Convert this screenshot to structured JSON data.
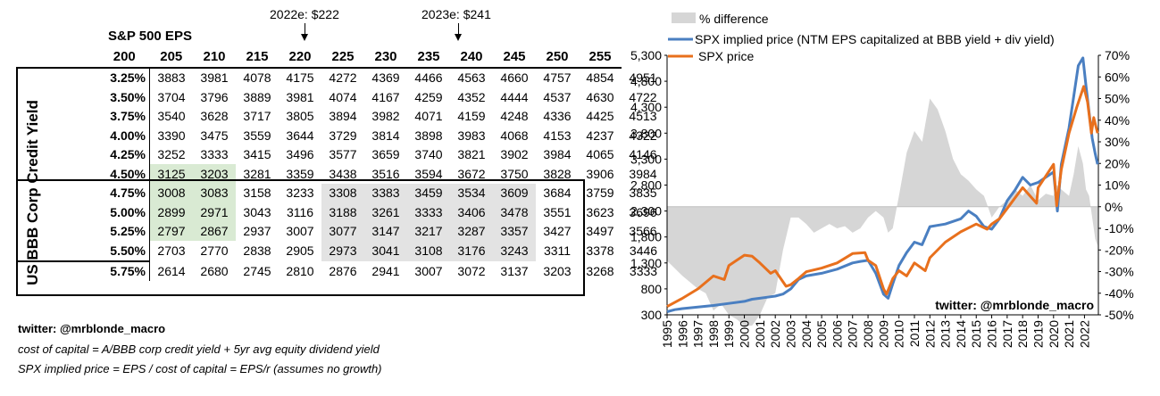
{
  "annotations": {
    "a2022": "2022e: $222",
    "a2023": "2023e: $241"
  },
  "table": {
    "title": "S&P 500 EPS",
    "ylabel": "US BBB Corp Credit Yield",
    "eps_headers": [
      "200",
      "205",
      "210",
      "215",
      "220",
      "225",
      "230",
      "235",
      "240",
      "245",
      "250",
      "255"
    ],
    "rows": [
      {
        "rate": "3.25%",
        "values": [
          "3883",
          "3981",
          "4078",
          "4175",
          "4272",
          "4369",
          "4466",
          "4563",
          "4660",
          "4757",
          "4854",
          "4951"
        ]
      },
      {
        "rate": "3.50%",
        "values": [
          "3704",
          "3796",
          "3889",
          "3981",
          "4074",
          "4167",
          "4259",
          "4352",
          "4444",
          "4537",
          "4630",
          "4722"
        ]
      },
      {
        "rate": "3.75%",
        "values": [
          "3540",
          "3628",
          "3717",
          "3805",
          "3894",
          "3982",
          "4071",
          "4159",
          "4248",
          "4336",
          "4425",
          "4513"
        ]
      },
      {
        "rate": "4.00%",
        "values": [
          "3390",
          "3475",
          "3559",
          "3644",
          "3729",
          "3814",
          "3898",
          "3983",
          "4068",
          "4153",
          "4237",
          "4322"
        ]
      },
      {
        "rate": "4.25%",
        "values": [
          "3252",
          "3333",
          "3415",
          "3496",
          "3577",
          "3659",
          "3740",
          "3821",
          "3902",
          "3984",
          "4065",
          "4146"
        ]
      },
      {
        "rate": "4.50%",
        "values": [
          "3125",
          "3203",
          "3281",
          "3359",
          "3438",
          "3516",
          "3594",
          "3672",
          "3750",
          "3828",
          "3906",
          "3984"
        ]
      },
      {
        "rate": "4.75%",
        "values": [
          "3008",
          "3083",
          "3158",
          "3233",
          "3308",
          "3383",
          "3459",
          "3534",
          "3609",
          "3684",
          "3759",
          "3835"
        ]
      },
      {
        "rate": "5.00%",
        "values": [
          "2899",
          "2971",
          "3043",
          "3116",
          "3188",
          "3261",
          "3333",
          "3406",
          "3478",
          "3551",
          "3623",
          "3696"
        ]
      },
      {
        "rate": "5.25%",
        "values": [
          "2797",
          "2867",
          "2937",
          "3007",
          "3077",
          "3147",
          "3217",
          "3287",
          "3357",
          "3427",
          "3497",
          "3566"
        ]
      },
      {
        "rate": "5.50%",
        "values": [
          "2703",
          "2770",
          "2838",
          "2905",
          "2973",
          "3041",
          "3108",
          "3176",
          "3243",
          "3311",
          "3378",
          "3446"
        ]
      },
      {
        "rate": "5.75%",
        "values": [
          "2614",
          "2680",
          "2745",
          "2810",
          "2876",
          "2941",
          "3007",
          "3072",
          "3137",
          "3203",
          "3268",
          "3333"
        ]
      }
    ]
  },
  "footnotes": {
    "twitter": "twitter: @mrblonde_macro",
    "line1": "cost of capital = A/BBB corp credit yield + 5yr avg equity dividend yield",
    "line2": "SPX implied price = EPS / cost of capital = EPS/r (assumes no growth)"
  },
  "chart_data": {
    "type": "line",
    "legend": [
      "% difference",
      "SPX implied price (NTM EPS capitalized at BBB yield + div yield)",
      "SPX price"
    ],
    "watermark": "twitter: @mrblonde_macro",
    "y_left": {
      "min": 300,
      "max": 5300,
      "ticks": [
        "5,300",
        "4,800",
        "4,300",
        "3,800",
        "3,300",
        "2,800",
        "2,300",
        "1,800",
        "1,300",
        "800",
        "300"
      ],
      "tick_values": [
        5300,
        4800,
        4300,
        3800,
        3300,
        2800,
        2300,
        1800,
        1300,
        800,
        300
      ]
    },
    "y_right": {
      "min": -50,
      "max": 70,
      "ticks": [
        "70%",
        "60%",
        "50%",
        "40%",
        "30%",
        "20%",
        "10%",
        "0%",
        "-10%",
        "-20%",
        "-30%",
        "-40%",
        "-50%"
      ],
      "tick_values": [
        70,
        60,
        50,
        40,
        30,
        20,
        10,
        0,
        -10,
        -20,
        -30,
        -40,
        -50
      ]
    },
    "x_ticks": [
      "1995",
      "1996",
      "1997",
      "1998",
      "1999",
      "2000",
      "2001",
      "2002",
      "2003",
      "2004",
      "2005",
      "2006",
      "2007",
      "2008",
      "2009",
      "2010",
      "2011",
      "2012",
      "2013",
      "2014",
      "2015",
      "2016",
      "2017",
      "2018",
      "2019",
      "2020",
      "2021",
      "2022"
    ],
    "x_range": [
      1995,
      2022.9
    ],
    "colors": {
      "implied": "#4a7fc1",
      "price": "#e8701d",
      "diff": "#d6d6d6"
    },
    "series": [
      {
        "name": "SPX implied price",
        "x": [
          1995,
          1995.5,
          1996,
          1997,
          1998,
          1999,
          2000,
          2000.5,
          2001,
          2001.5,
          2002,
          2002.5,
          2003,
          2003.5,
          2004,
          2005,
          2006,
          2007,
          2007.5,
          2008,
          2008.5,
          2009,
          2009.3,
          2009.6,
          2010,
          2010.5,
          2011,
          2011.5,
          2012,
          2013,
          2014,
          2014.5,
          2015,
          2015.5,
          2016,
          2016.5,
          2017,
          2017.5,
          2018,
          2018.5,
          2019,
          2019.5,
          2020,
          2020.25,
          2020.5,
          2021,
          2021.3,
          2021.6,
          2021.9,
          2022.1,
          2022.3,
          2022.5,
          2022.7,
          2022.85
        ],
        "values": [
          360,
          400,
          420,
          450,
          480,
          520,
          560,
          600,
          620,
          640,
          660,
          700,
          800,
          980,
          1050,
          1100,
          1180,
          1300,
          1330,
          1350,
          1100,
          700,
          620,
          900,
          1250,
          1500,
          1700,
          1650,
          2000,
          2050,
          2150,
          2300,
          2200,
          2000,
          1950,
          2150,
          2500,
          2700,
          2950,
          2800,
          2850,
          2950,
          3050,
          2300,
          3200,
          3900,
          4500,
          5100,
          5250,
          4700,
          4200,
          3700,
          3400,
          3200
        ]
      },
      {
        "name": "SPX price",
        "x": [
          1995,
          1996,
          1997,
          1998,
          1998.7,
          1999,
          1999.5,
          2000,
          2000.5,
          2001,
          2001.7,
          2002,
          2002.7,
          2003,
          2003.5,
          2004,
          2005,
          2006,
          2007,
          2007.8,
          2008,
          2008.5,
          2009,
          2009.2,
          2009.6,
          2010,
          2010.5,
          2011,
          2011.7,
          2012,
          2013,
          2014,
          2015,
          2015.7,
          2016,
          2016.5,
          2017,
          2018,
          2018.9,
          2019,
          2020,
          2020.2,
          2020.5,
          2021,
          2021.5,
          2021.95,
          2022.2,
          2022.45,
          2022.6,
          2022.85
        ],
        "values": [
          460,
          620,
          800,
          1050,
          980,
          1250,
          1350,
          1450,
          1430,
          1300,
          1100,
          1150,
          850,
          880,
          1000,
          1130,
          1200,
          1300,
          1480,
          1500,
          1350,
          1250,
          800,
          700,
          1000,
          1150,
          1050,
          1300,
          1150,
          1400,
          1700,
          1900,
          2050,
          1950,
          2050,
          2150,
          2350,
          2750,
          2450,
          2750,
          3200,
          2400,
          3100,
          3800,
          4300,
          4700,
          4400,
          3800,
          4100,
          3800
        ]
      },
      {
        "name": "% difference",
        "x": [
          1995,
          1996,
          1997,
          1997.5,
          1998,
          1998.5,
          1999,
          1999.5,
          2000,
          2000.5,
          2001,
          2001.5,
          2002,
          2002.5,
          2003,
          2003.5,
          2004,
          2004.5,
          2005,
          2005.5,
          2006,
          2006.5,
          2007,
          2007.5,
          2008,
          2008.5,
          2009,
          2009.3,
          2009.6,
          2010,
          2010.5,
          2011,
          2011.5,
          2012,
          2012.5,
          2013,
          2013.5,
          2014,
          2014.5,
          2015,
          2015.5,
          2016,
          2016.5,
          2017,
          2017.5,
          2018,
          2018.5,
          2019,
          2019.5,
          2020,
          2020.2,
          2020.5,
          2021,
          2021.3,
          2021.6,
          2021.9,
          2022.1,
          2022.3,
          2022.5,
          2022.7,
          2022.85
        ],
        "values": [
          -25,
          -32,
          -38,
          -40,
          -48,
          -45,
          -50,
          -52,
          -55,
          -55,
          -50,
          -42,
          -40,
          -20,
          -5,
          -5,
          -8,
          -12,
          -10,
          -8,
          -10,
          -9,
          -12,
          -10,
          -5,
          -2,
          -5,
          -12,
          -10,
          5,
          25,
          35,
          30,
          50,
          45,
          35,
          22,
          15,
          12,
          8,
          5,
          -5,
          0,
          3,
          8,
          5,
          10,
          3,
          6,
          5,
          10,
          8,
          5,
          15,
          28,
          20,
          8,
          5,
          -5,
          -15,
          -18
        ]
      }
    ]
  }
}
